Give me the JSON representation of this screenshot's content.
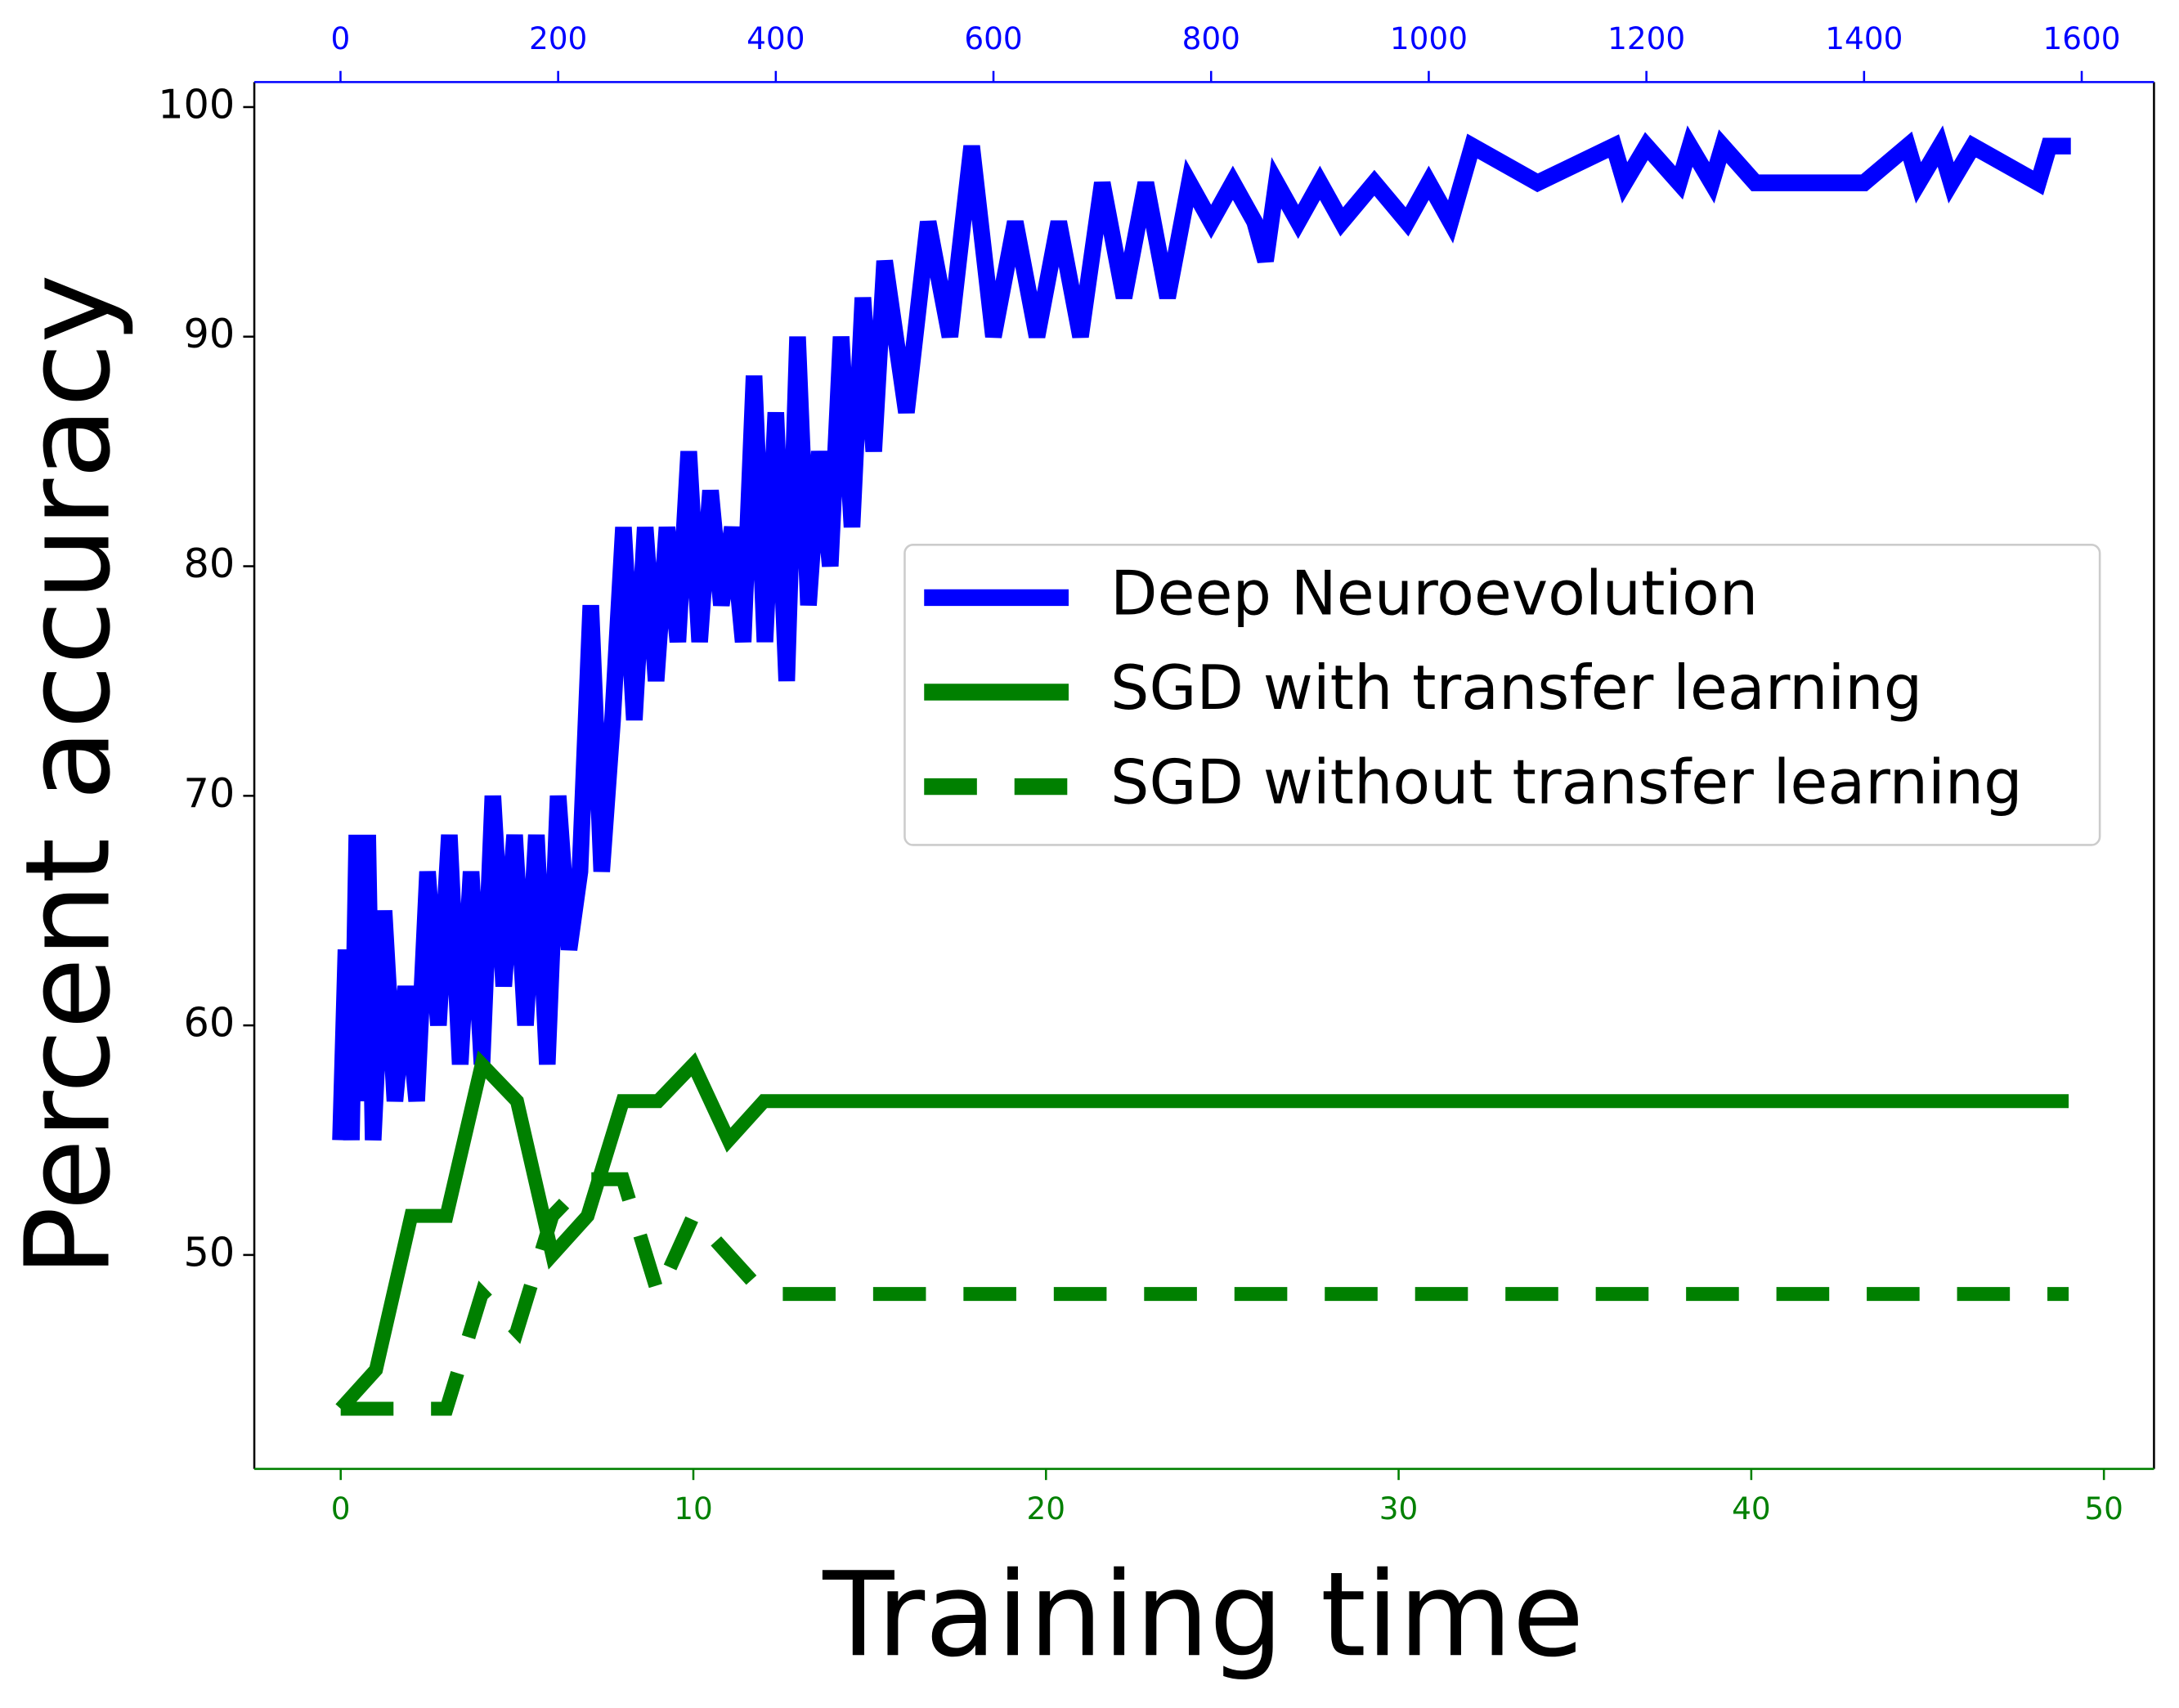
{
  "chart_data": {
    "type": "line",
    "xlabel": "Training time",
    "ylabel": "Percent accuracy",
    "xlim": [
      -2.45,
      51.42
    ],
    "xticks": [
      0,
      10,
      20,
      30,
      40,
      50
    ],
    "xcolor": "green",
    "x2lim": [
      -79.2,
      1666.4
    ],
    "x2ticks": [
      0,
      200,
      400,
      600,
      800,
      1000,
      1200,
      1400,
      1600
    ],
    "x2color": "blue",
    "ylim": [
      40.68,
      101.09
    ],
    "yticks": [
      50,
      60,
      70,
      80,
      90,
      100
    ],
    "legend": "center right",
    "series": [
      {
        "name": "Deep Neuroevolution",
        "color": "blue",
        "axis": "x2",
        "style": "solid",
        "x": [
          0,
          5,
          10,
          15,
          20,
          25,
          30,
          40,
          50,
          60,
          70,
          80,
          90,
          100,
          110,
          120,
          130,
          140,
          150,
          160,
          170,
          180,
          190,
          200,
          210,
          220,
          230,
          240,
          250,
          260,
          270,
          280,
          290,
          300,
          310,
          320,
          330,
          340,
          350,
          360,
          370,
          380,
          390,
          400,
          410,
          420,
          430,
          440,
          450,
          460,
          470,
          480,
          490,
          500,
          520,
          540,
          560,
          580,
          600,
          620,
          640,
          660,
          680,
          700,
          720,
          740,
          760,
          780,
          800,
          820,
          840,
          850,
          860,
          880,
          900,
          920,
          950,
          980,
          1000,
          1020,
          1040,
          1100,
          1170,
          1180,
          1200,
          1230,
          1240,
          1260,
          1270,
          1300,
          1400,
          1440,
          1450,
          1470,
          1480,
          1500,
          1560,
          1570,
          1590
        ],
        "values": [
          55,
          63.3,
          55,
          68.3,
          56.7,
          68.3,
          55,
          65,
          56.7,
          61.7,
          56.7,
          66.7,
          60,
          68.3,
          58.3,
          66.7,
          58.3,
          70,
          61.7,
          68.3,
          60,
          68.3,
          58.3,
          70,
          63.3,
          66.7,
          78.3,
          66.7,
          73.3,
          81.7,
          73.3,
          81.7,
          75,
          81.7,
          76.7,
          85,
          76.7,
          83.3,
          78.3,
          81.7,
          76.7,
          88.3,
          76.7,
          86.7,
          75,
          90,
          78.3,
          85,
          80,
          90,
          81.7,
          91.7,
          85,
          93.3,
          86.7,
          95,
          90,
          98.3,
          90,
          95,
          90,
          95,
          90,
          96.7,
          91.7,
          96.7,
          91.7,
          96.7,
          95,
          96.7,
          95,
          93.3,
          96.7,
          95,
          96.7,
          95,
          96.7,
          95,
          96.7,
          95,
          98.3,
          96.7,
          98.3,
          96.7,
          98.3,
          96.7,
          98.3,
          96.7,
          98.3,
          96.7,
          96.7,
          98.3,
          96.7,
          98.3,
          96.7,
          98.3,
          96.7,
          98.3,
          98.3
        ]
      },
      {
        "name": "SGD with transfer learning",
        "color": "green",
        "axis": "x",
        "style": "solid",
        "x": [
          0,
          1,
          2,
          3,
          4,
          5,
          6,
          7,
          8,
          9,
          10,
          11,
          12,
          49
        ],
        "values": [
          43.3,
          45,
          51.7,
          51.7,
          58.3,
          56.7,
          50,
          51.7,
          56.7,
          56.7,
          58.3,
          55,
          56.7,
          56.7
        ]
      },
      {
        "name": "SGD without transfer learning",
        "color": "green",
        "axis": "x",
        "style": "dashed",
        "x": [
          0,
          1,
          2,
          3,
          4,
          5,
          6,
          7,
          8,
          9,
          10,
          11,
          12,
          49
        ],
        "values": [
          43.3,
          43.3,
          43.3,
          43.3,
          48.3,
          46.7,
          51.7,
          53.3,
          53.3,
          48.3,
          51.7,
          50,
          48.3,
          48.3
        ]
      }
    ]
  }
}
